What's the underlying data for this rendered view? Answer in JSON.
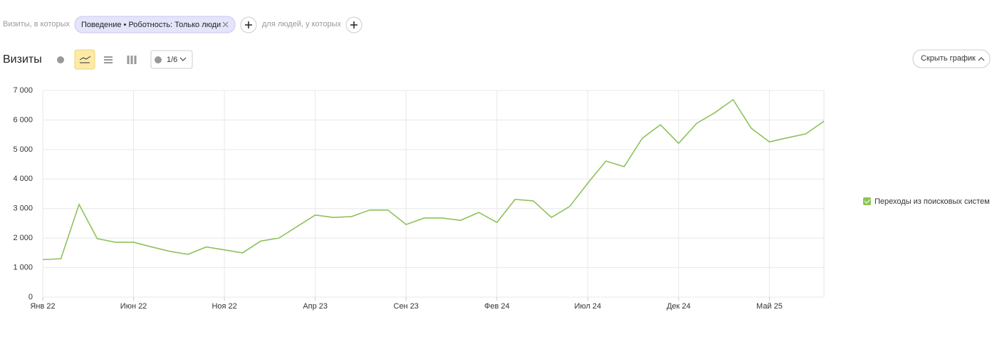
{
  "ui": {
    "filter_prefix": "Визиты, в которых",
    "filter_chip": "Поведение • Роботность: Только люди",
    "filter_people": "для людей, у которых",
    "section_title": "Визиты",
    "series_count": "1/6",
    "hide_chart": "Скрыть график"
  },
  "chart_data": {
    "type": "line",
    "categories": [
      "Янв 22",
      null,
      null,
      null,
      null,
      "Июн 22",
      null,
      null,
      null,
      null,
      "Ноя 22",
      null,
      null,
      null,
      null,
      "Апр 23",
      null,
      null,
      null,
      null,
      "Сен 23",
      null,
      null,
      null,
      null,
      "Фев 24",
      null,
      null,
      null,
      null,
      "Июл 24",
      null,
      null,
      null,
      null,
      "Дек 24",
      null,
      null,
      null,
      null,
      "Май 25",
      null,
      null,
      null
    ],
    "series": [
      {
        "name": "Переходы из поисковых систем",
        "color": "#8dc25a",
        "values": [
          1270,
          1300,
          3140,
          1980,
          1860,
          1860,
          1700,
          1550,
          1450,
          1700,
          1600,
          1500,
          1900,
          2000,
          2390,
          2780,
          2700,
          2730,
          2950,
          2950,
          2460,
          2680,
          2680,
          2600,
          2870,
          2530,
          3310,
          3260,
          2700,
          3070,
          3860,
          4610,
          4420,
          5380,
          5840,
          5210,
          5890,
          6250,
          6690,
          5720,
          5260,
          5400,
          5530,
          5960
        ]
      }
    ],
    "ylim": [
      0,
      7000
    ],
    "yticks": [
      0,
      {
        "value": 1000,
        "label": "1 000"
      },
      {
        "value": 2000,
        "label": "2 000"
      },
      {
        "value": 3000,
        "label": "3 000"
      },
      {
        "value": 4000,
        "label": "4 000"
      },
      {
        "value": 5000,
        "label": "5 000"
      },
      {
        "value": 6000,
        "label": "6 000"
      },
      {
        "value": 7000,
        "label": "7 000"
      }
    ],
    "grid": true
  }
}
